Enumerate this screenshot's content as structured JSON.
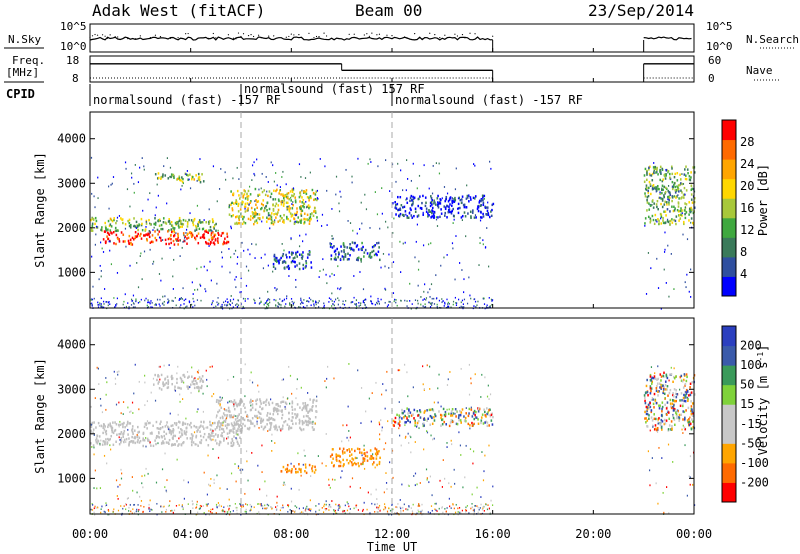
{
  "header": {
    "left": "Adak West (fitACF)",
    "center": "Beam 00",
    "right": "23/Sep/2014"
  },
  "panel_labels": {
    "nsky": "N.Sky",
    "nsearch": "N.Search",
    "freq_line1": "Freq.",
    "freq_line2": "[MHz]",
    "nave": "Nave",
    "cpid": "CPID"
  },
  "colors": {
    "power_scale": [
      "#0000ff",
      "#2f4f9f",
      "#3a7a5a",
      "#3fa83f",
      "#a8c83a",
      "#ffd700",
      "#ffa500",
      "#ff6a00",
      "#ff0000"
    ],
    "velocity_scale": [
      "#ff0000",
      "#ff6a00",
      "#ffa500",
      "#c8c8c8",
      "#c8c8c8",
      "#7fd23a",
      "#3a9a5a",
      "#3a5aaa",
      "#2b3fbf"
    ],
    "ground_scatter": "#c0c0c0"
  },
  "chart_data": [
    {
      "type": "line",
      "name": "status-panel-noise",
      "x_ticks_ut": [
        "00:00",
        "04:00",
        "08:00",
        "12:00",
        "16:00",
        "20:00",
        "00:00"
      ],
      "left_axis_label": "N.Sky",
      "left_ticks": [
        "10^5",
        "10^0"
      ],
      "right_axis_label": "N.Search",
      "right_ticks": [
        "10^5",
        "10^0"
      ],
      "data_gaps_ut": [
        [
          "16:00",
          "22:00"
        ]
      ]
    },
    {
      "type": "line",
      "name": "status-panel-frequency",
      "left_axis_label": "Freq. [MHz]",
      "left_ticks": [
        18,
        8
      ],
      "right_axis_label": "Nave",
      "right_ticks": [
        60,
        0
      ],
      "frequency_steps": [
        {
          "from_hour": 0.0,
          "to_hour": 10.0,
          "level": 0.3
        },
        {
          "from_hour": 10.0,
          "to_hour": 16.0,
          "level": 0.55
        },
        {
          "from_hour": 22.0,
          "to_hour": 24.0,
          "level": 0.3
        }
      ]
    },
    {
      "type": "table",
      "name": "cpid-track",
      "label": "CPID",
      "segments": [
        {
          "from_hour": 0.0,
          "to_hour": 6.0,
          "text": "normalsound (fast) -157 RF"
        },
        {
          "from_hour": 6.0,
          "to_hour": 12.0,
          "text": "normalsound (fast) 157 RF"
        },
        {
          "from_hour": 12.0,
          "to_hour": 16.0,
          "text": "normalsound (fast) -157 RF"
        }
      ]
    },
    {
      "type": "heatmap",
      "name": "power-rti",
      "ylabel": "Slant Range [km]",
      "yticks": [
        1000,
        2000,
        3000,
        4000
      ],
      "ylim": [
        200,
        4600
      ],
      "xlim_hours": [
        0,
        24
      ],
      "colorbar_label": "Power [dB]",
      "colorbar_ticks": [
        4,
        8,
        12,
        16,
        20,
        24,
        28
      ],
      "colorbar_range": [
        0,
        32
      ],
      "regions": [
        {
          "t0": 0.0,
          "t1": 5.0,
          "r0": 1950,
          "r1": 2250,
          "level": 0.45
        },
        {
          "t0": 0.5,
          "t1": 5.5,
          "r0": 1650,
          "r1": 1950,
          "level": 0.95
        },
        {
          "t0": 5.5,
          "t1": 9.0,
          "r0": 2100,
          "r1": 2900,
          "level": 0.55
        },
        {
          "t0": 2.5,
          "t1": 4.5,
          "r0": 3050,
          "r1": 3250,
          "level": 0.45
        },
        {
          "t0": 7.2,
          "t1": 8.8,
          "r0": 1100,
          "r1": 1500,
          "level": 0.15
        },
        {
          "t0": 9.5,
          "t1": 11.5,
          "r0": 1300,
          "r1": 1700,
          "level": 0.18
        },
        {
          "t0": 12.0,
          "t1": 16.0,
          "r0": 2250,
          "r1": 2750,
          "level": 0.08
        },
        {
          "t0": 22.0,
          "t1": 24.0,
          "r0": 2100,
          "r1": 3400,
          "level": 0.4
        }
      ]
    },
    {
      "type": "heatmap",
      "name": "velocity-rti",
      "xlabel": "Time UT",
      "ylabel": "Slant Range [km]",
      "yticks": [
        1000,
        2000,
        3000,
        4000
      ],
      "ylim": [
        200,
        4600
      ],
      "xticks": [
        "00:00",
        "04:00",
        "08:00",
        "12:00",
        "16:00",
        "20:00",
        "00:00"
      ],
      "xlim_hours": [
        0,
        24
      ],
      "colorbar_label": "Velocity [m s^-1]",
      "colorbar_ticks": [
        "200",
        "100",
        "50",
        "15",
        "-15",
        "-50",
        "-100",
        "-200"
      ],
      "regions": [
        {
          "t0": 0.0,
          "t1": 6.0,
          "r0": 1750,
          "r1": 2300,
          "class": "ground"
        },
        {
          "t0": 5.0,
          "t1": 9.0,
          "r0": 2100,
          "r1": 2800,
          "class": "ground"
        },
        {
          "t0": 2.5,
          "t1": 4.5,
          "r0": 3000,
          "r1": 3350,
          "class": "ground"
        },
        {
          "t0": 7.5,
          "t1": 9.0,
          "r0": 1150,
          "r1": 1350,
          "class": "negative"
        },
        {
          "t0": 9.5,
          "t1": 11.5,
          "r0": 1300,
          "r1": 1700,
          "class": "negative"
        },
        {
          "t0": 12.0,
          "t1": 16.0,
          "r0": 2200,
          "r1": 2600,
          "class": "mixed"
        },
        {
          "t0": 22.0,
          "t1": 24.0,
          "r0": 2100,
          "r1": 3400,
          "class": "mixed"
        }
      ]
    }
  ]
}
